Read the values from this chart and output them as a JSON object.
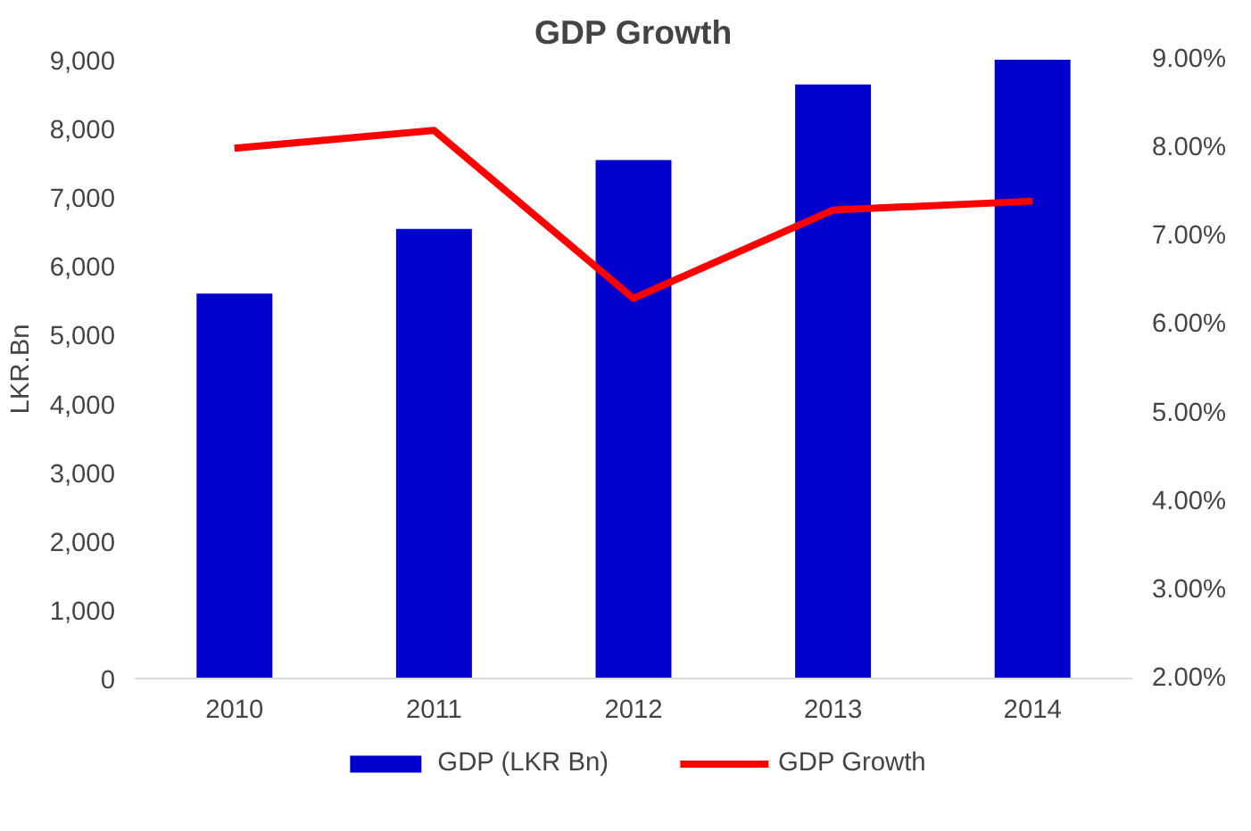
{
  "chart_data": {
    "type": "bar",
    "title": "GDP Growth",
    "ylabel": "LKR.Bn",
    "categories": [
      "2010",
      "2011",
      "2012",
      "2013",
      "2014"
    ],
    "series": [
      {
        "name": "GDP (LKR Bn)",
        "color": "#0000cc",
        "values": [
          5600,
          6540,
          7540,
          8640,
          9000
        ]
      },
      {
        "name": "GDP Growth",
        "type": "line",
        "axis": "y2",
        "color": "#ff0000",
        "values": [
          8.0,
          8.2,
          6.3,
          7.3,
          7.4
        ]
      }
    ],
    "ylim": [
      0,
      9000
    ],
    "yticks": [
      {
        "value": 0,
        "label": "0"
      },
      {
        "value": 1000,
        "label": "1,000"
      },
      {
        "value": 2000,
        "label": "2,000"
      },
      {
        "value": 3000,
        "label": "3,000"
      },
      {
        "value": 4000,
        "label": "4,000"
      },
      {
        "value": 5000,
        "label": "5,000"
      },
      {
        "value": 6000,
        "label": "6,000"
      },
      {
        "value": 7000,
        "label": "7,000"
      },
      {
        "value": 8000,
        "label": "8,000"
      },
      {
        "value": 9000,
        "label": "9,000"
      }
    ],
    "y2lim": [
      2,
      9
    ],
    "y2ticks": [
      {
        "value": 2,
        "label": "2.00%"
      },
      {
        "value": 3,
        "label": "3.00%"
      },
      {
        "value": 4,
        "label": "4.00%"
      },
      {
        "value": 5,
        "label": "5.00%"
      },
      {
        "value": 6,
        "label": "6.00%"
      },
      {
        "value": 7,
        "label": "7.00%"
      },
      {
        "value": 8,
        "label": "8.00%"
      },
      {
        "value": 9,
        "label": "9.00%"
      }
    ],
    "grid": false,
    "legend": "bottom"
  }
}
